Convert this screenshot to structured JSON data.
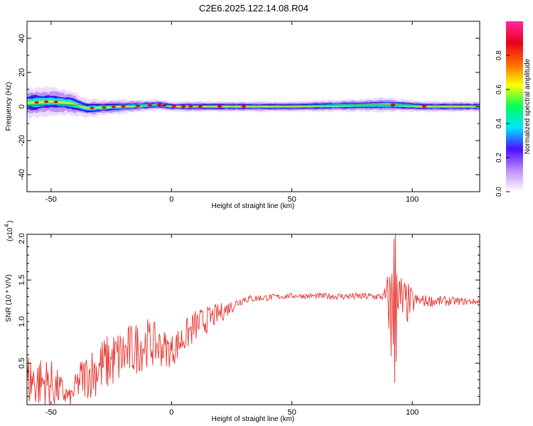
{
  "title": "C2E6.2025.122.14.08.R04",
  "chart_data": [
    {
      "type": "heatmap",
      "xlabel": "Height of straight line (km)",
      "ylabel": "Frequency (Hz)",
      "xlim": [
        -60,
        128
      ],
      "ylim": [
        -50,
        50
      ],
      "xticks": [
        -50,
        0,
        50,
        100
      ],
      "yticks": [
        40,
        20,
        0,
        -20,
        -40
      ],
      "ytick_labels": [
        "40",
        "20",
        "0",
        "-20",
        "-40"
      ],
      "colorbar": {
        "label": "Normalized spectral amplitude",
        "range": [
          0,
          1
        ],
        "ticks": [
          0.0,
          0.2,
          0.4,
          0.6,
          0.8
        ],
        "tick_labels": [
          "0.0",
          "0.2",
          "0.4",
          "0.6",
          "0.8"
        ],
        "colors": [
          "#ffffff",
          "#c08cff",
          "#4a10ff",
          "#00e5ff",
          "#00ff5a",
          "#ffff00",
          "#ff6a00",
          "#e8001a",
          "#ff2aa0"
        ]
      },
      "band": [
        {
          "x": -60,
          "center": 2,
          "halfwidth": 9
        },
        {
          "x": -50,
          "center": 3,
          "halfwidth": 8
        },
        {
          "x": -42,
          "center": 2,
          "halfwidth": 7
        },
        {
          "x": -35,
          "center": -1,
          "halfwidth": 5
        },
        {
          "x": -20,
          "center": 0,
          "halfwidth": 4
        },
        {
          "x": -5,
          "center": 1,
          "halfwidth": 3
        },
        {
          "x": 0,
          "center": 0,
          "halfwidth": 3
        },
        {
          "x": 50,
          "center": 0,
          "halfwidth": 3
        },
        {
          "x": 90,
          "center": 1,
          "halfwidth": 4
        },
        {
          "x": 105,
          "center": 0,
          "halfwidth": 3
        },
        {
          "x": 128,
          "center": 0,
          "halfwidth": 3
        }
      ],
      "hotspots": [
        -56,
        -52,
        -48,
        -33,
        -28,
        -24,
        -20,
        -14,
        -9,
        -5,
        -3,
        1,
        5,
        8,
        12,
        20,
        30,
        92,
        105
      ]
    },
    {
      "type": "line",
      "xlabel": "Height of straight line (km)",
      "ylabel": "SNR (10 * V/V)",
      "yscale_label": "(x10",
      "yscale_exponent": "4",
      "xlim": [
        -60,
        128
      ],
      "ylim": [
        0,
        2.05
      ],
      "xticks": [
        -50,
        0,
        50,
        100
      ],
      "yticks": [
        0.5,
        1.0,
        1.5,
        2.0
      ],
      "ytick_labels": [
        "0.5",
        "1.0",
        "1.5",
        "2.0"
      ],
      "color": "#e8302a",
      "envelope": [
        {
          "x": -60,
          "base": 0.3,
          "amp": 0.35
        },
        {
          "x": -50,
          "base": 0.25,
          "amp": 0.3
        },
        {
          "x": -42,
          "base": 0.08,
          "amp": 0.1
        },
        {
          "x": -38,
          "base": 0.3,
          "amp": 0.25
        },
        {
          "x": -30,
          "base": 0.45,
          "amp": 0.35
        },
        {
          "x": -20,
          "base": 0.6,
          "amp": 0.35
        },
        {
          "x": -10,
          "base": 0.75,
          "amp": 0.3
        },
        {
          "x": 0,
          "base": 0.65,
          "amp": 0.2
        },
        {
          "x": 10,
          "base": 0.95,
          "amp": 0.2
        },
        {
          "x": 20,
          "base": 1.1,
          "amp": 0.12
        },
        {
          "x": 30,
          "base": 1.27,
          "amp": 0.05
        },
        {
          "x": 50,
          "base": 1.31,
          "amp": 0.03
        },
        {
          "x": 88,
          "base": 1.3,
          "amp": 0.05
        },
        {
          "x": 92,
          "base": 1.2,
          "amp": 0.7
        },
        {
          "x": 96,
          "base": 1.2,
          "amp": 0.35
        },
        {
          "x": 102,
          "base": 1.25,
          "amp": 0.08
        },
        {
          "x": 128,
          "base": 1.24,
          "amp": 0.03
        }
      ]
    }
  ]
}
